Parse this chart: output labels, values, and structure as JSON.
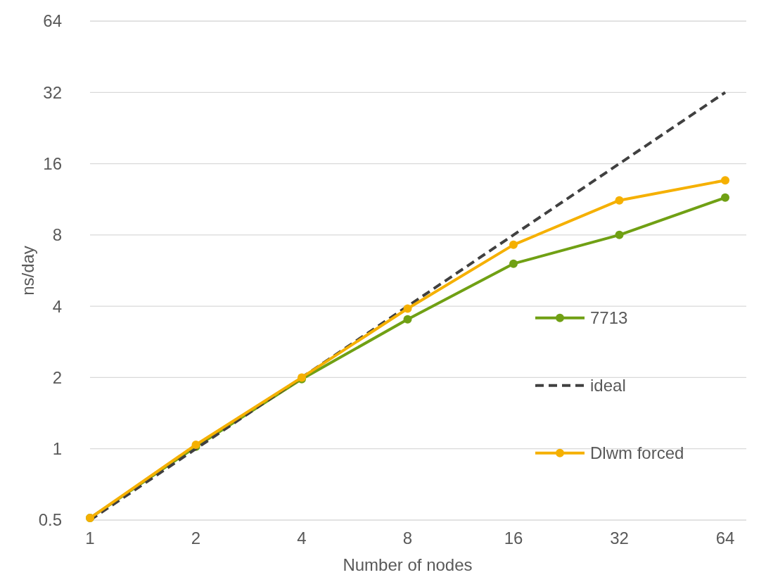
{
  "chart_data": {
    "type": "line",
    "xlabel": "Number of nodes",
    "ylabel": "ns/day",
    "categories": [
      "1",
      "2",
      "4",
      "8",
      "16",
      "32",
      "64"
    ],
    "series": [
      {
        "name": "7713",
        "color": "#70a014",
        "values": [
          0.51,
          1.02,
          1.97,
          3.52,
          6.05,
          8.0,
          11.5
        ],
        "marker": "circle",
        "line_style": "solid"
      },
      {
        "name": "ideal",
        "color": "#404040",
        "values": [
          0.5,
          1,
          2,
          4,
          8,
          16,
          32
        ],
        "marker": "none",
        "line_style": "dashed"
      },
      {
        "name": "Dlwm forced",
        "color": "#f5b000",
        "values": [
          0.51,
          1.04,
          2.0,
          3.91,
          7.27,
          11.2,
          13.6
        ],
        "marker": "circle",
        "line_style": "solid"
      }
    ],
    "log": "y",
    "ylim": [
      0.5,
      64
    ],
    "yticks": [
      0.5,
      1,
      2,
      4,
      8,
      16,
      32,
      64
    ],
    "grid": "y",
    "legend": "right"
  }
}
